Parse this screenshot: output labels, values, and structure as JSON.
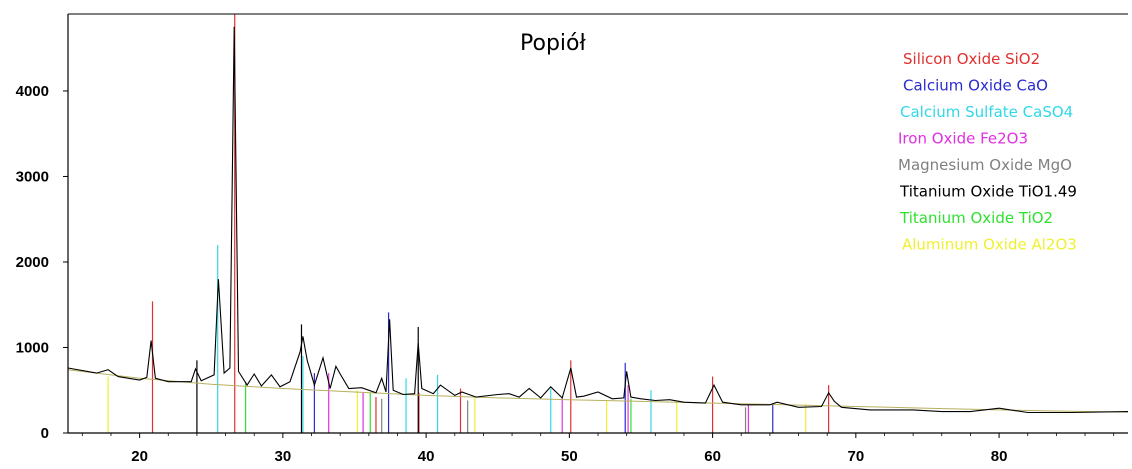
{
  "chart_data": {
    "type": "line",
    "title": "Popiół",
    "xlabel": "",
    "ylabel": "",
    "xlim": [
      15,
      89
    ],
    "ylim": [
      0,
      4900
    ],
    "x_ticks": [
      20,
      30,
      40,
      50,
      60,
      70,
      80
    ],
    "y_ticks": [
      0,
      1000,
      2000,
      3000,
      4000
    ],
    "grid": false,
    "legend_placement": "top-right",
    "legend": [
      {
        "name": "Silicon Oxide SiO2",
        "color": "#e03030"
      },
      {
        "name": "Calcium Oxide CaO",
        "color": "#2a2ad0"
      },
      {
        "name": "Calcium Sulfate CaSO4",
        "color": "#30d8e8"
      },
      {
        "name": "Iron Oxide Fe2O3",
        "color": "#e030e0"
      },
      {
        "name": "Magnesium Oxide MgO",
        "color": "#808080"
      },
      {
        "name": "Titanium Oxide  TiO1.49",
        "color": "#000000"
      },
      {
        "name": "Titanium Oxide TiO2",
        "color": "#30e030"
      },
      {
        "name": "Aluminum Oxide Al2O3",
        "color": "#f0f030"
      }
    ],
    "series": [
      {
        "x": [
          15,
          17,
          17.8,
          18.5,
          20,
          20.5,
          20.8,
          21.1,
          22,
          23.6,
          23.9,
          24.3,
          25.2,
          25.5,
          25.9,
          26.3,
          26.6,
          26.9,
          27.5,
          28.0,
          28.5,
          29.2,
          29.8,
          30.5,
          31.2,
          31.4,
          31.7,
          32.2,
          32.8,
          33.3,
          33.7,
          34.0,
          34.6,
          35.5,
          36.5,
          36.9,
          37.2,
          37.45,
          37.7,
          38.4,
          39.2,
          39.45,
          39.7,
          40.5,
          41.0,
          42.0,
          42.5,
          43.5,
          45.0,
          45.8,
          46.5,
          47.2,
          48.0,
          48.7,
          49.5,
          50.1,
          50.5,
          51.0,
          52.0,
          53.0,
          53.8,
          54.0,
          54.3,
          55.0,
          56.0,
          57.0,
          58.0,
          59.5,
          60.1,
          60.7,
          62.0,
          64.0,
          64.5,
          66.0,
          67.6,
          68.1,
          68.5,
          69.0,
          71.0,
          74.0,
          76.0,
          78.0,
          80.0,
          82.0,
          85.0,
          89.0
        ],
        "values": [
          760,
          700,
          740,
          660,
          620,
          650,
          1080,
          640,
          600,
          600,
          750,
          610,
          680,
          1800,
          700,
          760,
          4750,
          720,
          560,
          690,
          550,
          680,
          540,
          600,
          950,
          1130,
          850,
          560,
          880,
          520,
          780,
          690,
          520,
          530,
          470,
          640,
          480,
          1330,
          500,
          450,
          460,
          1050,
          520,
          460,
          560,
          440,
          480,
          420,
          450,
          460,
          420,
          520,
          410,
          540,
          410,
          760,
          420,
          430,
          480,
          400,
          410,
          720,
          420,
          400,
          380,
          390,
          360,
          350,
          560,
          360,
          330,
          330,
          360,
          300,
          310,
          470,
          370,
          300,
          270,
          270,
          250,
          250,
          290,
          240,
          240,
          250
        ]
      }
    ],
    "reference_lines": [
      {
        "x": 20.9,
        "height": 1540,
        "color": "#e03030"
      },
      {
        "x": 26.64,
        "height": 4900,
        "color": "#e03030"
      },
      {
        "x": 50.1,
        "height": 850,
        "color": "#e03030"
      },
      {
        "x": 60.0,
        "height": 660,
        "color": "#e03030"
      },
      {
        "x": 36.5,
        "height": 420,
        "color": "#e03030"
      },
      {
        "x": 39.5,
        "height": 470,
        "color": "#e03030"
      },
      {
        "x": 42.4,
        "height": 520,
        "color": "#e03030"
      },
      {
        "x": 68.1,
        "height": 560,
        "color": "#e03030"
      },
      {
        "x": 37.38,
        "height": 1410,
        "color": "#2a2ad0"
      },
      {
        "x": 53.9,
        "height": 820,
        "color": "#2a2ad0"
      },
      {
        "x": 32.2,
        "height": 700,
        "color": "#2a2ad0"
      },
      {
        "x": 64.2,
        "height": 330,
        "color": "#2a2ad0"
      },
      {
        "x": 25.45,
        "height": 2200,
        "color": "#30d8e8"
      },
      {
        "x": 31.4,
        "height": 900,
        "color": "#30d8e8"
      },
      {
        "x": 38.6,
        "height": 640,
        "color": "#30d8e8"
      },
      {
        "x": 40.8,
        "height": 680,
        "color": "#30d8e8"
      },
      {
        "x": 48.7,
        "height": 520,
        "color": "#30d8e8"
      },
      {
        "x": 55.7,
        "height": 500,
        "color": "#30d8e8"
      },
      {
        "x": 33.2,
        "height": 700,
        "color": "#e030e0"
      },
      {
        "x": 35.6,
        "height": 480,
        "color": "#e030e0"
      },
      {
        "x": 49.5,
        "height": 420,
        "color": "#e030e0"
      },
      {
        "x": 54.1,
        "height": 560,
        "color": "#e030e0"
      },
      {
        "x": 62.5,
        "height": 340,
        "color": "#e030e0"
      },
      {
        "x": 36.9,
        "height": 400,
        "color": "#808080"
      },
      {
        "x": 42.9,
        "height": 380,
        "color": "#808080"
      },
      {
        "x": 62.3,
        "height": 300,
        "color": "#808080"
      },
      {
        "x": 31.3,
        "height": 1270,
        "color": "#000000"
      },
      {
        "x": 39.45,
        "height": 1240,
        "color": "#000000"
      },
      {
        "x": 24.0,
        "height": 850,
        "color": "#000000"
      },
      {
        "x": 27.4,
        "height": 600,
        "color": "#30e030"
      },
      {
        "x": 36.1,
        "height": 470,
        "color": "#30e030"
      },
      {
        "x": 54.3,
        "height": 400,
        "color": "#30e030"
      },
      {
        "x": 17.8,
        "height": 660,
        "color": "#f0f030"
      },
      {
        "x": 35.2,
        "height": 500,
        "color": "#f0f030"
      },
      {
        "x": 43.4,
        "height": 420,
        "color": "#f0f030"
      },
      {
        "x": 52.6,
        "height": 380,
        "color": "#f0f030"
      },
      {
        "x": 57.5,
        "height": 360,
        "color": "#f0f030"
      },
      {
        "x": 66.5,
        "height": 340,
        "color": "#f0f030"
      }
    ],
    "background_curve": {
      "x": [
        15,
        20,
        25,
        30,
        35,
        40,
        45,
        50,
        55,
        60,
        65,
        70,
        75,
        80,
        85,
        89
      ],
      "values": [
        740,
        640,
        570,
        520,
        480,
        440,
        410,
        390,
        370,
        350,
        330,
        310,
        290,
        270,
        255,
        245
      ],
      "color": "#b8b060"
    }
  }
}
